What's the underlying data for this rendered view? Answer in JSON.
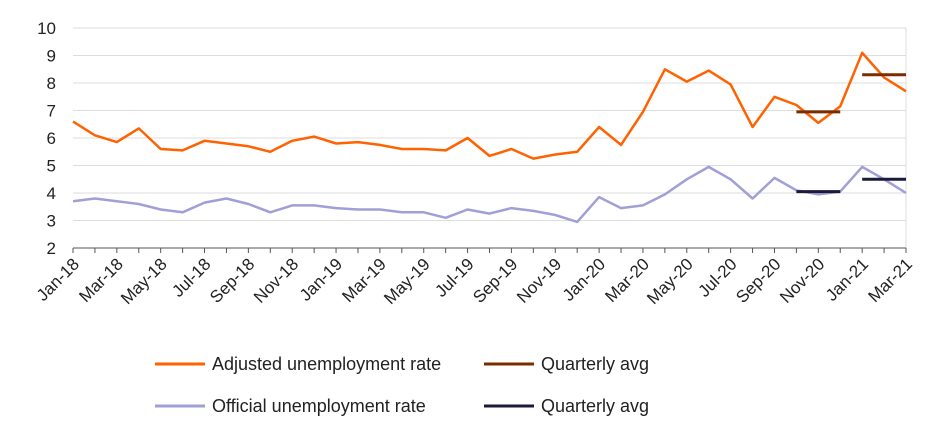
{
  "chart_data": {
    "type": "line",
    "title": "",
    "xlabel": "",
    "ylabel": "",
    "ylim": [
      2,
      10
    ],
    "yticks": [
      "10",
      "9",
      "8",
      "7",
      "6",
      "5",
      "4",
      "3",
      "2"
    ],
    "x": [
      "Jan-18",
      "Feb-18",
      "Mar-18",
      "Apr-18",
      "May-18",
      "Jun-18",
      "Jul-18",
      "Aug-18",
      "Sep-18",
      "Oct-18",
      "Nov-18",
      "Dec-18",
      "Jan-19",
      "Feb-19",
      "Mar-19",
      "Apr-19",
      "May-19",
      "Jun-19",
      "Jul-19",
      "Aug-19",
      "Sep-19",
      "Oct-19",
      "Nov-19",
      "Dec-19",
      "Jan-20",
      "Feb-20",
      "Mar-20",
      "Apr-20",
      "May-20",
      "Jun-20",
      "Jul-20",
      "Aug-20",
      "Sep-20",
      "Oct-20",
      "Nov-20",
      "Dec-20",
      "Jan-21",
      "Feb-21",
      "Mar-21"
    ],
    "xtick_labels": [
      "Jan-18",
      "Mar-18",
      "May-18",
      "Jul-18",
      "Sep-18",
      "Nov-18",
      "Jan-19",
      "Mar-19",
      "May-19",
      "Jul-19",
      "Sep-19",
      "Nov-19",
      "Jan-20",
      "Mar-20",
      "May-20",
      "Jul-20",
      "Sep-20",
      "Nov-20",
      "Jan-21",
      "Mar-21"
    ],
    "grid": true,
    "legend_position": "bottom",
    "series": [
      {
        "name": "Adjusted unemployment rate",
        "color": "#FF6200",
        "values": [
          6.6,
          6.1,
          5.85,
          6.35,
          5.6,
          5.55,
          5.9,
          5.8,
          5.7,
          5.5,
          5.9,
          6.05,
          5.8,
          5.85,
          5.75,
          5.6,
          5.6,
          5.55,
          6.0,
          5.35,
          5.6,
          5.25,
          5.4,
          5.5,
          6.4,
          5.75,
          6.95,
          8.5,
          8.05,
          8.45,
          7.95,
          6.4,
          7.5,
          7.2,
          6.55,
          7.15,
          9.1,
          8.2,
          7.7
        ]
      },
      {
        "name": "Official unemployment rate",
        "color": "#A09FD6",
        "values": [
          3.7,
          3.8,
          3.7,
          3.6,
          3.4,
          3.3,
          3.65,
          3.8,
          3.6,
          3.3,
          3.55,
          3.55,
          3.45,
          3.4,
          3.4,
          3.3,
          3.3,
          3.1,
          3.4,
          3.25,
          3.45,
          3.35,
          3.2,
          2.95,
          3.85,
          3.45,
          3.55,
          3.95,
          4.5,
          4.95,
          4.5,
          3.8,
          4.55,
          4.1,
          3.95,
          4.05,
          4.95,
          4.5,
          4.0
        ]
      }
    ],
    "quarterly": [
      {
        "name": "Quarterly avg",
        "color": "#7A2E00",
        "segments": [
          {
            "x_start": "Oct-20",
            "x_end": "Dec-20",
            "value": 6.95
          },
          {
            "x_start": "Jan-21",
            "x_end": "Mar-21",
            "value": 8.3
          }
        ]
      },
      {
        "name": "Quarterly avg",
        "color": "#1C1A3A",
        "segments": [
          {
            "x_start": "Oct-20",
            "x_end": "Dec-20",
            "value": 4.05
          },
          {
            "x_start": "Jan-21",
            "x_end": "Mar-21",
            "value": 4.5
          }
        ]
      }
    ]
  }
}
